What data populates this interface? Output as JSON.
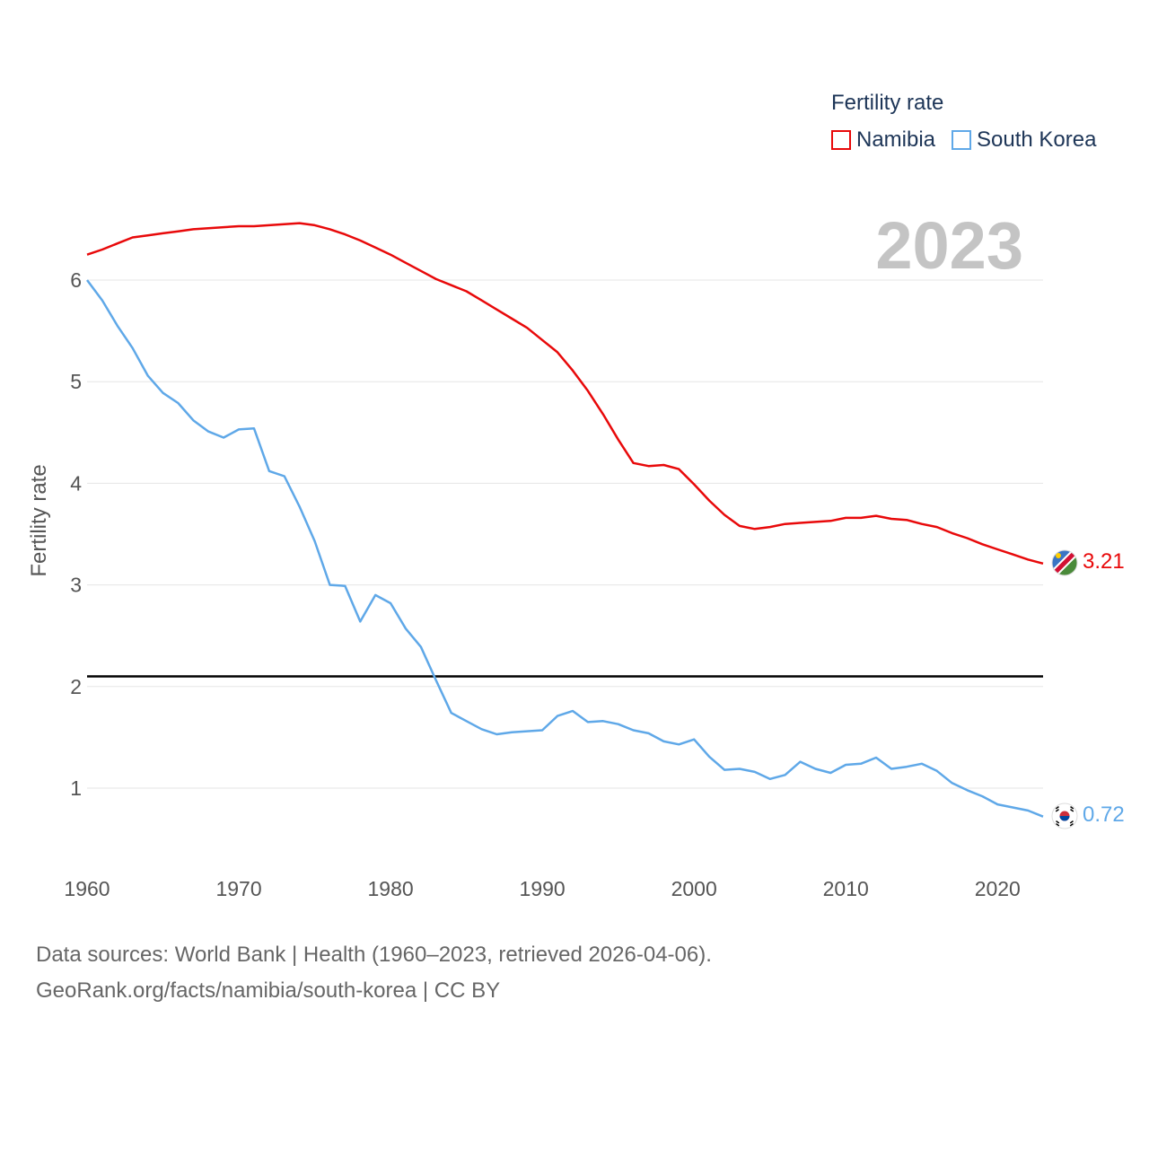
{
  "legend": {
    "title": "Fertility rate",
    "items": [
      {
        "name": "Namibia",
        "color": "#e8090a"
      },
      {
        "name": "South Korea",
        "color": "#5fa8e8"
      }
    ]
  },
  "year_label": "2023",
  "sources": {
    "line1": "Data sources: World Bank | Health (1960–2023, retrieved 2026-04-06).",
    "line2": "GeoRank.org/facts/namibia/south-korea | CC BY"
  },
  "chart_data": {
    "type": "line",
    "title": "Fertility rate",
    "xlabel": "",
    "ylabel": "Fertility rate",
    "xlim": [
      1960,
      2023
    ],
    "ylim": [
      0.3,
      6.6
    ],
    "x_ticks": [
      1960,
      1970,
      1980,
      1990,
      2000,
      2010,
      2020
    ],
    "y_ticks": [
      1,
      2,
      3,
      4,
      5,
      6
    ],
    "grid": true,
    "legend_position": "top-right",
    "reference_line": {
      "y": 2.1,
      "color": "#000000"
    },
    "x": [
      1960,
      1961,
      1962,
      1963,
      1964,
      1965,
      1966,
      1967,
      1968,
      1969,
      1970,
      1971,
      1972,
      1973,
      1974,
      1975,
      1976,
      1977,
      1978,
      1979,
      1980,
      1981,
      1982,
      1983,
      1984,
      1985,
      1986,
      1987,
      1988,
      1989,
      1990,
      1991,
      1992,
      1993,
      1994,
      1995,
      1996,
      1997,
      1998,
      1999,
      2000,
      2001,
      2002,
      2003,
      2004,
      2005,
      2006,
      2007,
      2008,
      2009,
      2010,
      2011,
      2012,
      2013,
      2014,
      2015,
      2016,
      2017,
      2018,
      2019,
      2020,
      2021,
      2022,
      2023
    ],
    "series": [
      {
        "name": "Namibia",
        "color": "#e8090a",
        "end_label": "3.21",
        "values": [
          6.25,
          6.3,
          6.36,
          6.42,
          6.44,
          6.46,
          6.48,
          6.5,
          6.51,
          6.52,
          6.53,
          6.53,
          6.54,
          6.55,
          6.56,
          6.54,
          6.5,
          6.45,
          6.39,
          6.32,
          6.25,
          6.17,
          6.09,
          6.01,
          5.95,
          5.89,
          5.8,
          5.71,
          5.62,
          5.53,
          5.41,
          5.29,
          5.11,
          4.91,
          4.68,
          4.43,
          4.2,
          4.17,
          4.18,
          4.14,
          3.99,
          3.83,
          3.69,
          3.58,
          3.55,
          3.57,
          3.6,
          3.61,
          3.62,
          3.63,
          3.66,
          3.66,
          3.68,
          3.65,
          3.64,
          3.6,
          3.57,
          3.51,
          3.46,
          3.4,
          3.35,
          3.3,
          3.25,
          3.21
        ]
      },
      {
        "name": "South Korea",
        "color": "#5fa8e8",
        "end_label": "0.72",
        "values": [
          6.0,
          5.8,
          5.55,
          5.33,
          5.06,
          4.89,
          4.79,
          4.62,
          4.51,
          4.45,
          4.53,
          4.54,
          4.12,
          4.07,
          3.77,
          3.43,
          3.0,
          2.99,
          2.64,
          2.9,
          2.82,
          2.57,
          2.39,
          2.06,
          1.74,
          1.66,
          1.58,
          1.53,
          1.55,
          1.56,
          1.57,
          1.71,
          1.76,
          1.65,
          1.66,
          1.63,
          1.57,
          1.54,
          1.46,
          1.43,
          1.48,
          1.31,
          1.18,
          1.19,
          1.16,
          1.09,
          1.13,
          1.26,
          1.19,
          1.15,
          1.23,
          1.24,
          1.3,
          1.19,
          1.21,
          1.24,
          1.17,
          1.05,
          0.98,
          0.92,
          0.84,
          0.81,
          0.78,
          0.72
        ]
      }
    ]
  }
}
